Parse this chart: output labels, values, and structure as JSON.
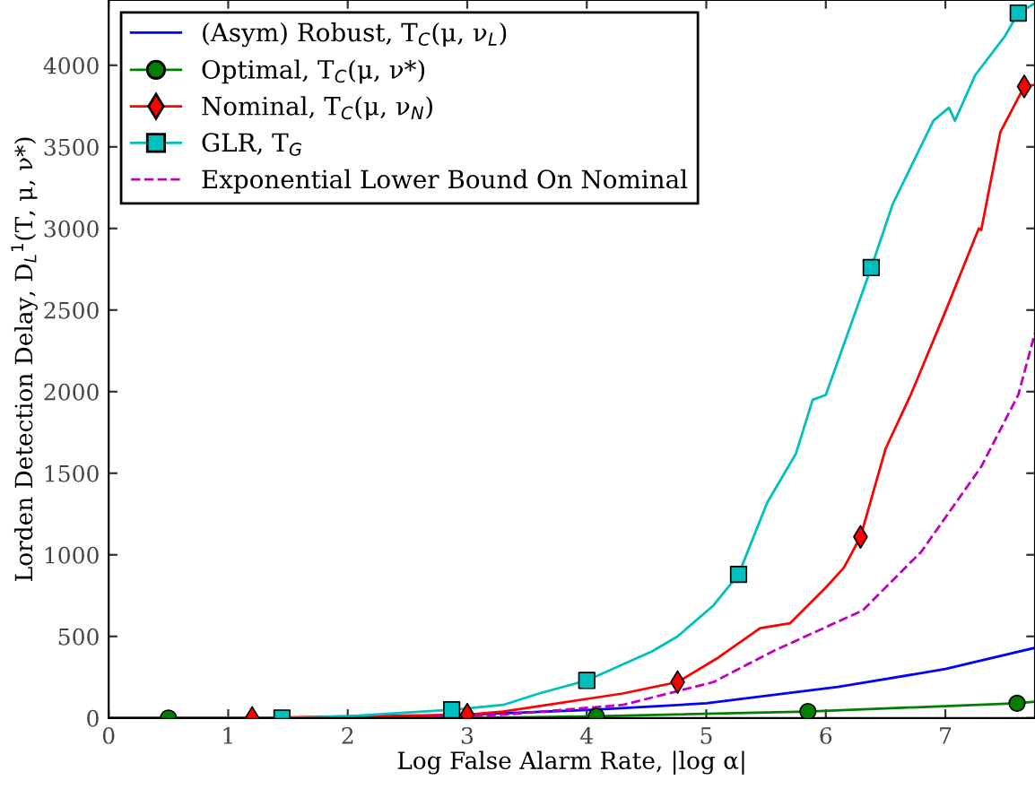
{
  "chart_data": {
    "type": "line",
    "xlabel": "Log False Alarm Rate, |log α|",
    "ylabel": "Lorden Detection Delay, D$_{L}$$^{1}$(T, μ, ν*)",
    "xlim": [
      0,
      7.75
    ],
    "ylim": [
      0,
      4400
    ],
    "xticks": [
      0,
      1,
      2,
      3,
      4,
      5,
      6,
      7
    ],
    "yticks": [
      0,
      500,
      1000,
      1500,
      2000,
      2500,
      3000,
      3500,
      4000
    ],
    "grid": false,
    "legend": "top left",
    "series": [
      {
        "name": "(Asym) Robust, T$_{C}$(μ, ν$_{L}$)",
        "color": "#0000ff",
        "line_style": "solid",
        "x": [
          0,
          2,
          3,
          4.05,
          5.0,
          6.1,
          7.0,
          7.75
        ],
        "values": [
          0,
          0,
          20,
          50,
          90,
          190,
          300,
          430
        ]
      },
      {
        "name": "Optimal, T$_{C}$(μ, ν*)",
        "color": "#007f00",
        "line_style": "solid",
        "x": [
          0,
          0.5,
          2,
          3,
          4.08,
          5.85,
          7.6,
          7.75
        ],
        "values": [
          0,
          0,
          0,
          0,
          10,
          40,
          90,
          100
        ]
      },
      {
        "name": "Nominal, T$_{C}$(μ, ν$_{N}$)",
        "color": "#ff0000",
        "line_style": "solid",
        "x": [
          0,
          1.2,
          2,
          3,
          3.3,
          4.3,
          4.76,
          5.1,
          5.45,
          5.7,
          6.0,
          6.15,
          6.29,
          6.5,
          6.71,
          7.0,
          7.28,
          7.3,
          7.46,
          7.66,
          7.75
        ],
        "values": [
          0,
          0,
          10,
          20,
          40,
          150,
          220,
          370,
          550,
          580,
          800,
          920,
          1110,
          1650,
          1980,
          2490,
          3000,
          2990,
          3590,
          3870,
          3880
        ]
      },
      {
        "name": "GLR, T$_{G}$",
        "color": "#00bfbf",
        "line_style": "solid",
        "x": [
          0,
          1.45,
          2,
          2.87,
          3.3,
          3.6,
          4.0,
          4.55,
          4.76,
          5.06,
          5.27,
          5.51,
          5.75,
          5.89,
          6.0,
          6.38,
          6.56,
          6.9,
          7.03,
          7.08,
          7.25,
          7.5,
          7.61,
          7.75
        ],
        "values": [
          0,
          0,
          10,
          50,
          80,
          150,
          230,
          410,
          500,
          690,
          880,
          1320,
          1620,
          1950,
          1980,
          2760,
          3150,
          3660,
          3740,
          3660,
          3940,
          4180,
          4320,
          4380
        ]
      },
      {
        "name": "Exponential Lower Bound On Nominal",
        "color": "#bf00bf",
        "line_style": "dashed",
        "x": [
          2.5,
          3.3,
          4.3,
          5.06,
          5.56,
          6.31,
          6.8,
          7.3,
          7.61,
          7.75
        ],
        "values": [
          0,
          20,
          80,
          220,
          410,
          660,
          1020,
          1540,
          1980,
          2360
        ]
      },
      {
        "type": "scatter",
        "color": "#007f00",
        "marker": "circle",
        "x": [
          0.5,
          4.08,
          5.85,
          7.6
        ],
        "values": [
          0,
          10,
          40,
          90
        ]
      },
      {
        "type": "scatter",
        "color": "#ff0000",
        "marker": "diamond",
        "x": [
          1.2,
          3.0,
          4.76,
          6.29,
          7.66
        ],
        "values": [
          0,
          20,
          220,
          1110,
          3870
        ]
      },
      {
        "type": "scatter",
        "color": "#00bfbf",
        "marker": "square",
        "x": [
          1.45,
          2.87,
          4.0,
          5.27,
          6.38,
          7.61
        ],
        "values": [
          0,
          50,
          230,
          880,
          2760,
          4320
        ]
      }
    ]
  }
}
